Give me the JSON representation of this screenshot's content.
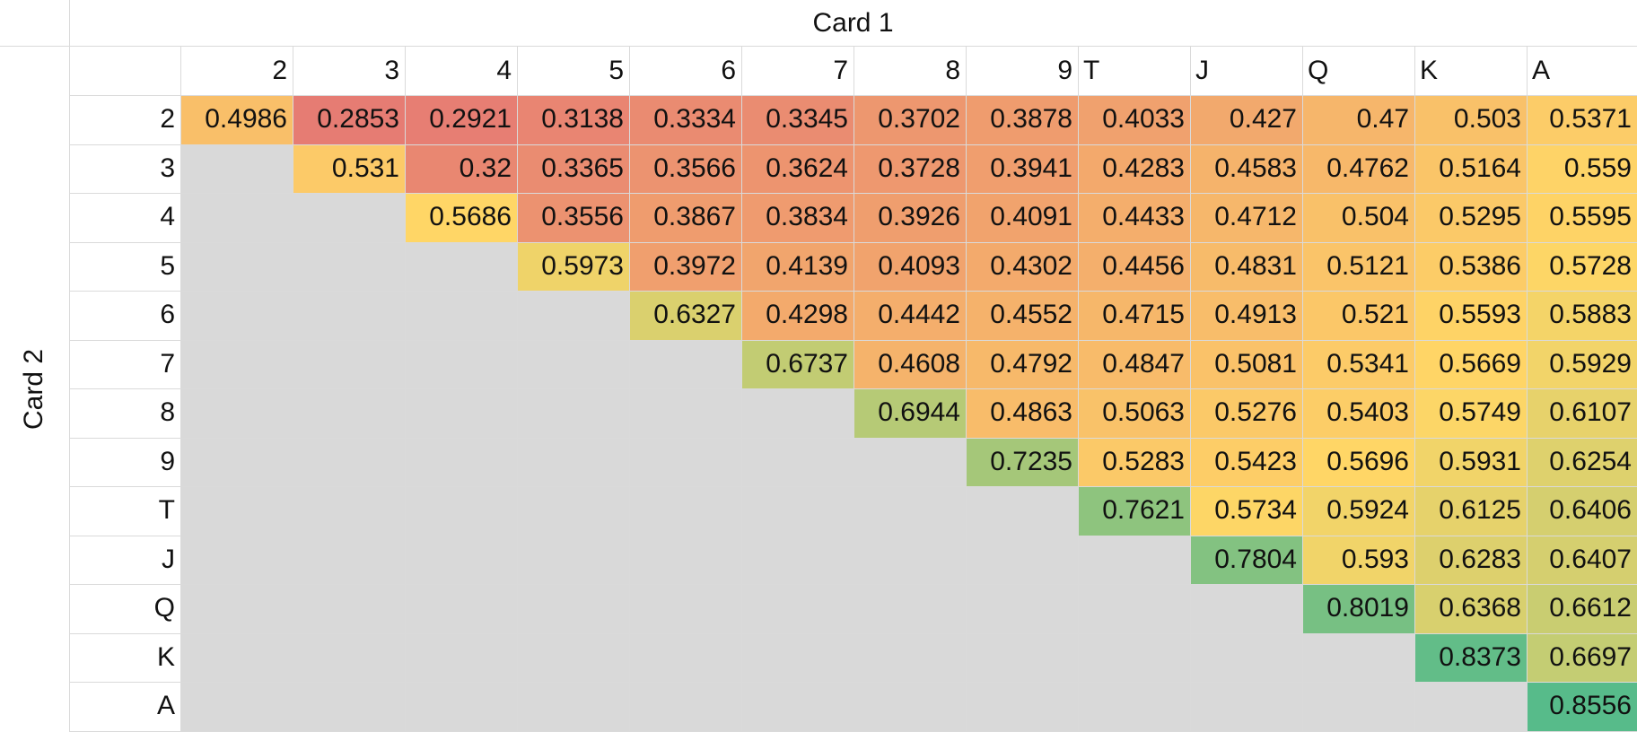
{
  "sheet": {
    "card1_label": "Card 1",
    "card2_label": "Card 2",
    "ranks": [
      "2",
      "3",
      "4",
      "5",
      "6",
      "7",
      "8",
      "9",
      "T",
      "J",
      "Q",
      "K",
      "A"
    ],
    "rows": [
      [
        "0.4986",
        "0.2853",
        "0.2921",
        "0.3138",
        "0.3334",
        "0.3345",
        "0.3702",
        "0.3878",
        "0.4033",
        "0.427",
        "0.47",
        "0.503",
        "0.5371"
      ],
      [
        null,
        "0.531",
        "0.32",
        "0.3365",
        "0.3566",
        "0.3624",
        "0.3728",
        "0.3941",
        "0.4283",
        "0.4583",
        "0.4762",
        "0.5164",
        "0.559"
      ],
      [
        null,
        null,
        "0.5686",
        "0.3556",
        "0.3867",
        "0.3834",
        "0.3926",
        "0.4091",
        "0.4433",
        "0.4712",
        "0.504",
        "0.5295",
        "0.5595"
      ],
      [
        null,
        null,
        null,
        "0.5973",
        "0.3972",
        "0.4139",
        "0.4093",
        "0.4302",
        "0.4456",
        "0.4831",
        "0.5121",
        "0.5386",
        "0.5728"
      ],
      [
        null,
        null,
        null,
        null,
        "0.6327",
        "0.4298",
        "0.4442",
        "0.4552",
        "0.4715",
        "0.4913",
        "0.521",
        "0.5593",
        "0.5883"
      ],
      [
        null,
        null,
        null,
        null,
        null,
        "0.6737",
        "0.4608",
        "0.4792",
        "0.4847",
        "0.5081",
        "0.5341",
        "0.5669",
        "0.5929"
      ],
      [
        null,
        null,
        null,
        null,
        null,
        null,
        "0.6944",
        "0.4863",
        "0.5063",
        "0.5276",
        "0.5403",
        "0.5749",
        "0.6107"
      ],
      [
        null,
        null,
        null,
        null,
        null,
        null,
        null,
        "0.7235",
        "0.5283",
        "0.5423",
        "0.5696",
        "0.5931",
        "0.6254"
      ],
      [
        null,
        null,
        null,
        null,
        null,
        null,
        null,
        null,
        "0.7621",
        "0.5734",
        "0.5924",
        "0.6125",
        "0.6406"
      ],
      [
        null,
        null,
        null,
        null,
        null,
        null,
        null,
        null,
        null,
        "0.7804",
        "0.593",
        "0.6283",
        "0.6407"
      ],
      [
        null,
        null,
        null,
        null,
        null,
        null,
        null,
        null,
        null,
        null,
        "0.8019",
        "0.6368",
        "0.6612"
      ],
      [
        null,
        null,
        null,
        null,
        null,
        null,
        null,
        null,
        null,
        null,
        null,
        "0.8373",
        "0.6697"
      ],
      [
        null,
        null,
        null,
        null,
        null,
        null,
        null,
        null,
        null,
        null,
        null,
        null,
        "0.8556"
      ]
    ]
  },
  "colors": {
    "scale_low": "#e67c73",
    "scale_mid": "#ffd666",
    "scale_high": "#57bb8a",
    "blank_cell": "#d9d9d9",
    "gridline": "#dadada"
  }
}
